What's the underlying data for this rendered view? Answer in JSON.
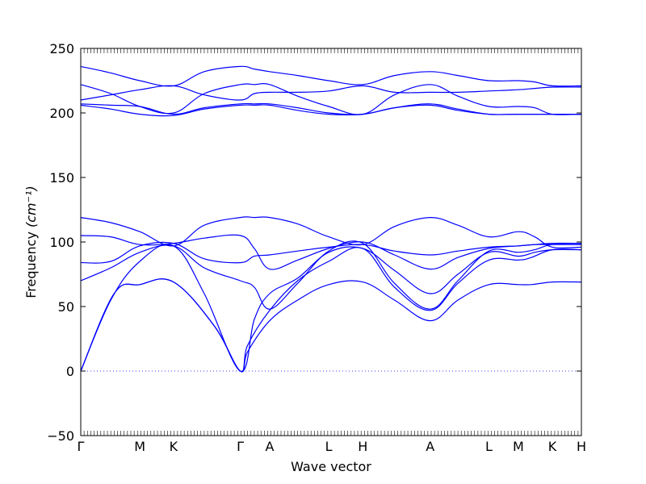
{
  "chart_data": {
    "type": "line",
    "title": "",
    "xlabel": "Wave vector",
    "ylabel": "Frequency ",
    "ylabel_unit": "(cm⁻¹)",
    "ylim": [
      -50,
      250
    ],
    "yticks": [
      -50,
      0,
      50,
      100,
      150,
      200,
      250
    ],
    "xlim": [
      0,
      15
    ],
    "xticks": [
      {
        "label": "Γ",
        "x": 0
      },
      {
        "label": "M",
        "x": 1.77
      },
      {
        "label": "K",
        "x": 2.78
      },
      {
        "label": "Γ",
        "x": 4.78
      },
      {
        "label": "A",
        "x": 5.66
      },
      {
        "label": "L",
        "x": 7.43
      },
      {
        "label": "H",
        "x": 8.45
      },
      {
        "label": "A",
        "x": 10.47
      },
      {
        "label": "L",
        "x": 12.23
      },
      {
        "label": "M",
        "x": 13.11
      },
      {
        "label": "K",
        "x": 14.13
      },
      {
        "label": "H",
        "x": 15.0
      }
    ],
    "zero_line": {
      "y": 0,
      "style": "dotted"
    },
    "grid": false,
    "line_color": "#0000ff",
    "series": [
      {
        "x": [
          0,
          1.0,
          1.77,
          2.78,
          4.0,
          4.78,
          5.0,
          5.66,
          6.5,
          7.43,
          8.45,
          9.4,
          10.47,
          11.3,
          12.23,
          13.11,
          13.5,
          14.13,
          15.0
        ],
        "values": [
          0,
          60,
          67,
          69,
          35,
          0,
          15,
          39,
          55,
          67,
          69,
          55,
          39,
          55,
          67,
          67,
          67,
          69,
          69
        ]
      },
      {
        "x": [
          0,
          1.0,
          1.77,
          2.78,
          4.0,
          4.78,
          5.0,
          5.66,
          6.5,
          7.43,
          8.45,
          9.4,
          10.47,
          11.3,
          12.23,
          13.11,
          13.5,
          14.13,
          15.0
        ],
        "values": [
          0,
          60,
          67,
          69,
          35,
          0,
          20,
          47,
          70,
          85,
          95,
          65,
          47,
          68,
          86,
          86,
          88,
          94,
          94
        ]
      },
      {
        "x": [
          0,
          0.9,
          1.77,
          2.78,
          3.7,
          4.78,
          5.2,
          5.66,
          6.5,
          7.43,
          8.45,
          9.4,
          10.47,
          11.3,
          12.23,
          13.11,
          13.6,
          14.13,
          15.0
        ],
        "values": [
          0,
          55,
          85,
          97,
          60,
          0,
          40,
          60,
          72,
          92,
          95,
          78,
          60,
          75,
          92,
          89,
          92,
          94,
          94
        ]
      },
      {
        "x": [
          0,
          0.9,
          1.77,
          2.78,
          3.7,
          4.78,
          5.2,
          5.66,
          6.5,
          7.43,
          8.45,
          9.4,
          10.47,
          11.3,
          12.23,
          13.11,
          13.6,
          14.13,
          15.0
        ],
        "values": [
          70,
          80,
          92,
          97,
          80,
          70,
          65,
          48,
          68,
          93,
          99,
          68,
          48,
          70,
          93,
          92,
          94,
          98,
          98
        ]
      },
      {
        "x": [
          0,
          0.9,
          1.77,
          2.78,
          3.7,
          4.78,
          5.2,
          5.66,
          6.5,
          7.43,
          8.45,
          9.4,
          10.47,
          11.3,
          12.23,
          13.11,
          13.6,
          14.13,
          15.0
        ],
        "values": [
          84,
          85,
          97,
          99,
          87,
          84,
          89,
          90,
          93,
          96,
          98,
          93,
          90,
          93,
          96,
          97,
          98,
          98,
          98
        ]
      },
      {
        "x": [
          0,
          0.9,
          1.77,
          2.78,
          3.7,
          4.78,
          5.2,
          5.66,
          6.5,
          7.43,
          8.45,
          9.4,
          10.47,
          11.3,
          12.23,
          13.11,
          13.6,
          14.13,
          15.0
        ],
        "values": [
          105,
          104,
          98,
          99,
          103,
          105,
          95,
          79,
          86,
          95,
          100,
          90,
          79,
          88,
          95,
          97,
          98,
          99,
          99
        ]
      },
      {
        "x": [
          0,
          0.9,
          1.77,
          2.78,
          3.7,
          4.78,
          5.2,
          5.66,
          6.5,
          7.43,
          8.45,
          9.4,
          10.47,
          11.3,
          12.23,
          13.11,
          13.6,
          14.13,
          15.0
        ],
        "values": [
          119,
          115,
          108,
          97,
          113,
          119,
          119,
          119,
          114,
          104,
          98,
          112,
          119,
          113,
          104,
          108,
          104,
          96,
          96
        ]
      },
      {
        "x": [
          0,
          0.9,
          1.77,
          2.78,
          3.7,
          4.78,
          5.2,
          5.66,
          6.5,
          7.43,
          8.45,
          9.4,
          10.47,
          11.3,
          12.23,
          13.11,
          13.6,
          14.13,
          15.0
        ],
        "values": [
          206,
          203,
          199,
          198,
          203,
          206,
          206,
          206,
          202,
          199,
          199,
          204,
          206,
          202,
          199,
          199,
          199,
          199,
          199
        ]
      },
      {
        "x": [
          0,
          0.9,
          1.77,
          2.78,
          3.7,
          4.78,
          5.2,
          5.66,
          6.5,
          7.43,
          8.45,
          9.4,
          10.47,
          11.3,
          12.23,
          13.11,
          13.6,
          14.13,
          15.0
        ],
        "values": [
          207,
          206,
          205,
          199,
          204,
          207,
          207,
          207,
          204,
          200,
          199,
          204,
          207,
          203,
          199,
          199,
          199,
          199,
          199
        ]
      },
      {
        "x": [
          0,
          0.9,
          1.77,
          2.78,
          3.7,
          4.78,
          5.2,
          5.66,
          6.5,
          7.43,
          8.45,
          9.4,
          10.47,
          11.3,
          12.23,
          13.11,
          13.6,
          14.13,
          15.0
        ],
        "values": [
          222,
          215,
          205,
          200,
          215,
          222,
          222,
          222,
          213,
          205,
          199,
          214,
          222,
          213,
          205,
          205,
          204,
          199,
          199
        ]
      },
      {
        "x": [
          0,
          0.9,
          1.77,
          2.78,
          3.7,
          4.78,
          5.2,
          5.66,
          6.5,
          7.43,
          8.45,
          9.4,
          10.47,
          11.3,
          12.23,
          13.11,
          13.6,
          14.13,
          15.0
        ],
        "values": [
          210,
          214,
          218,
          221,
          214,
          210,
          215,
          216,
          216,
          217,
          221,
          216,
          216,
          216,
          217,
          218,
          219,
          220,
          220
        ]
      },
      {
        "x": [
          0,
          0.9,
          1.77,
          2.78,
          3.7,
          4.78,
          5.2,
          5.66,
          6.5,
          7.43,
          8.45,
          9.4,
          10.47,
          11.3,
          12.23,
          13.11,
          13.6,
          14.13,
          15.0
        ],
        "values": [
          236,
          231,
          225,
          221,
          232,
          236,
          234,
          232,
          229,
          225,
          222,
          229,
          232,
          229,
          225,
          225,
          224,
          221,
          221
        ]
      }
    ]
  }
}
